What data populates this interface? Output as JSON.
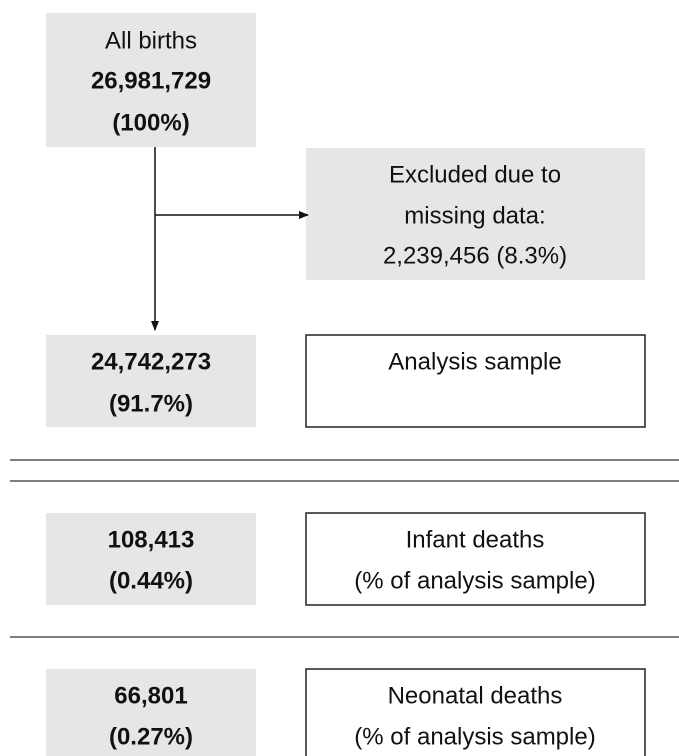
{
  "nodes": [
    {
      "lines": [
        "All births",
        "26,981,729",
        "(100%)"
      ]
    },
    {
      "lines": [
        "Excluded due to",
        "missing data:",
        "2,239,456 (8.3%)"
      ]
    },
    {
      "lines": [
        "24,742,273",
        "(91.7%)"
      ]
    },
    {
      "lines": [
        "Analysis sample"
      ]
    },
    {
      "lines": [
        "108,413",
        "(0.44%)"
      ]
    },
    {
      "lines": [
        "Infant deaths",
        "(% of analysis sample)"
      ]
    },
    {
      "lines": [
        "66,801",
        "(0.27%)"
      ]
    },
    {
      "lines": [
        "Neonatal deaths",
        "(% of analysis sample)"
      ]
    }
  ]
}
